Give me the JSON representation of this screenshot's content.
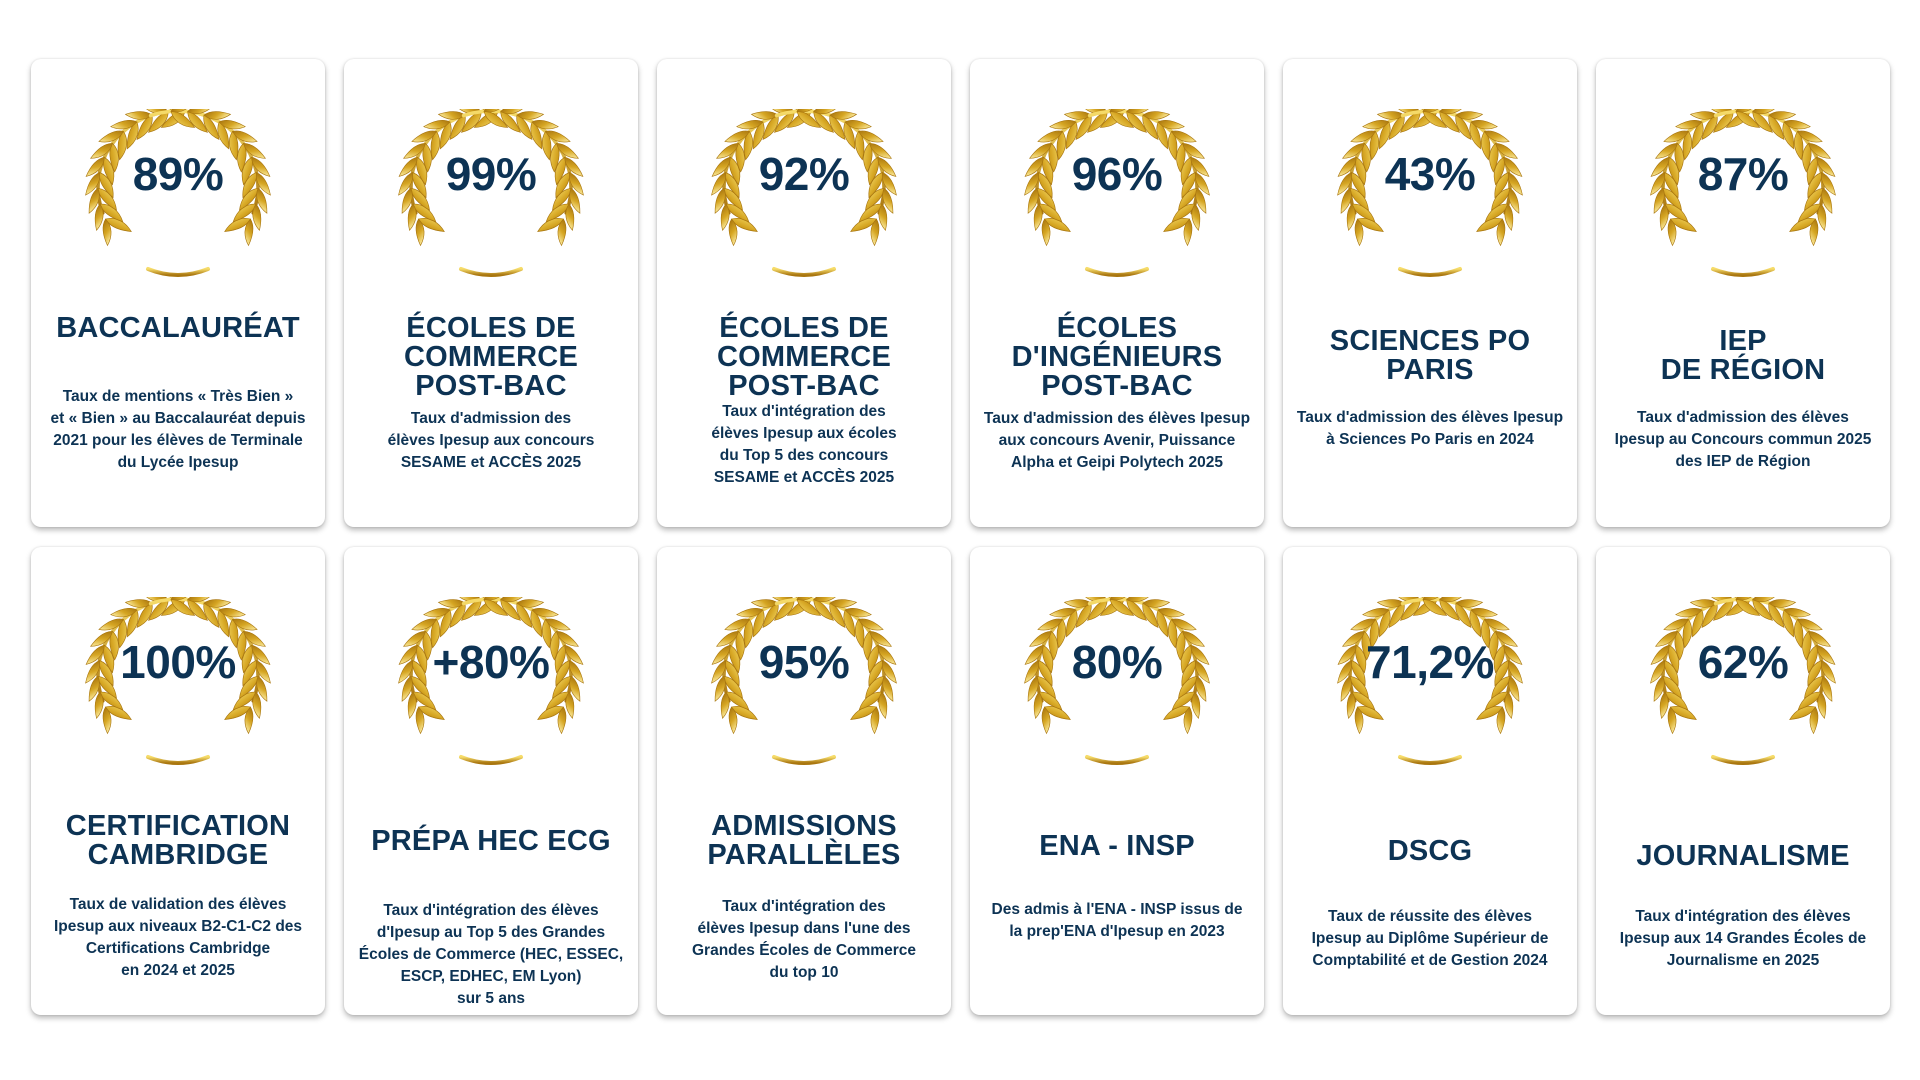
{
  "colors": {
    "text": "#0d3354",
    "gold": "#d6a623",
    "gold_light": "#f6dc6a",
    "gold_dark": "#a9760f"
  },
  "cards": [
    {
      "pct": "89%",
      "title": "BACCALAURÉAT",
      "desc": "Taux de mentions « Très Bien »\net « Bien » au Baccalauréat depuis\n2021 pour les élèves de Terminale\ndu Lycée Ipesup",
      "icon": "laurel-wreath-icon"
    },
    {
      "pct": "99%",
      "title": "ÉCOLES DE\nCOMMERCE\nPOST-BAC",
      "desc": "Taux d'admission des\nélèves Ipesup aux concours\nSESAME et ACCÈS 2025",
      "icon": "laurel-wreath-icon"
    },
    {
      "pct": "92%",
      "title": "ÉCOLES DE\nCOMMERCE\nPOST-BAC",
      "desc": "Taux d'intégration des\nélèves Ipesup aux écoles\ndu Top 5 des concours\nSESAME et ACCÈS 2025",
      "icon": "laurel-wreath-icon"
    },
    {
      "pct": "96%",
      "title": "ÉCOLES\nD'INGÉNIEURS\nPOST-BAC",
      "desc": "Taux d'admission des élèves Ipesup\naux concours Avenir, Puissance\nAlpha et Geipi Polytech 2025",
      "icon": "laurel-wreath-icon"
    },
    {
      "pct": "43%",
      "title": "SCIENCES PO\nPARIS",
      "desc": "Taux d'admission des élèves Ipesup\nà Sciences Po Paris en 2024",
      "icon": "laurel-wreath-icon"
    },
    {
      "pct": "87%",
      "title": "IEP\nDE RÉGION",
      "desc": "Taux d'admission des élèves\nIpesup au Concours commun 2025\ndes IEP de Région",
      "icon": "laurel-wreath-icon"
    },
    {
      "pct": "100%",
      "title": "CERTIFICATION\nCAMBRIDGE",
      "desc": "Taux de validation des élèves\nIpesup aux niveaux B2-C1-C2 des\nCertifications Cambridge\nen 2024 et 2025",
      "icon": "laurel-wreath-icon"
    },
    {
      "pct": "+80%",
      "title": "PRÉPA HEC ECG",
      "desc": "Taux d'intégration des élèves\nd'Ipesup au Top 5 des Grandes\nÉcoles de Commerce (HEC, ESSEC,\nESCP, EDHEC, EM Lyon)\nsur 5 ans",
      "icon": "laurel-wreath-icon"
    },
    {
      "pct": "95%",
      "title": "ADMISSIONS\nPARALLÈLES",
      "desc": "Taux d'intégration des\nélèves Ipesup dans l'une des\nGrandes Écoles de Commerce\ndu top 10",
      "icon": "laurel-wreath-icon"
    },
    {
      "pct": "80%",
      "title": "ENA - INSP",
      "desc": "Des admis à l'ENA - INSP issus de\nla prep'ENA d'Ipesup en 2023",
      "icon": "laurel-wreath-icon"
    },
    {
      "pct": "71,2%",
      "title": "DSCG",
      "desc": "Taux de réussite des élèves\nIpesup au Diplôme Supérieur de\nComptabilité et de Gestion 2024",
      "icon": "laurel-wreath-icon"
    },
    {
      "pct": "62%",
      "title": "JOURNALISME",
      "desc": "Taux d'intégration des élèves\nIpesup aux 14 Grandes Écoles de\nJournalisme en 2025",
      "icon": "laurel-wreath-icon"
    }
  ]
}
